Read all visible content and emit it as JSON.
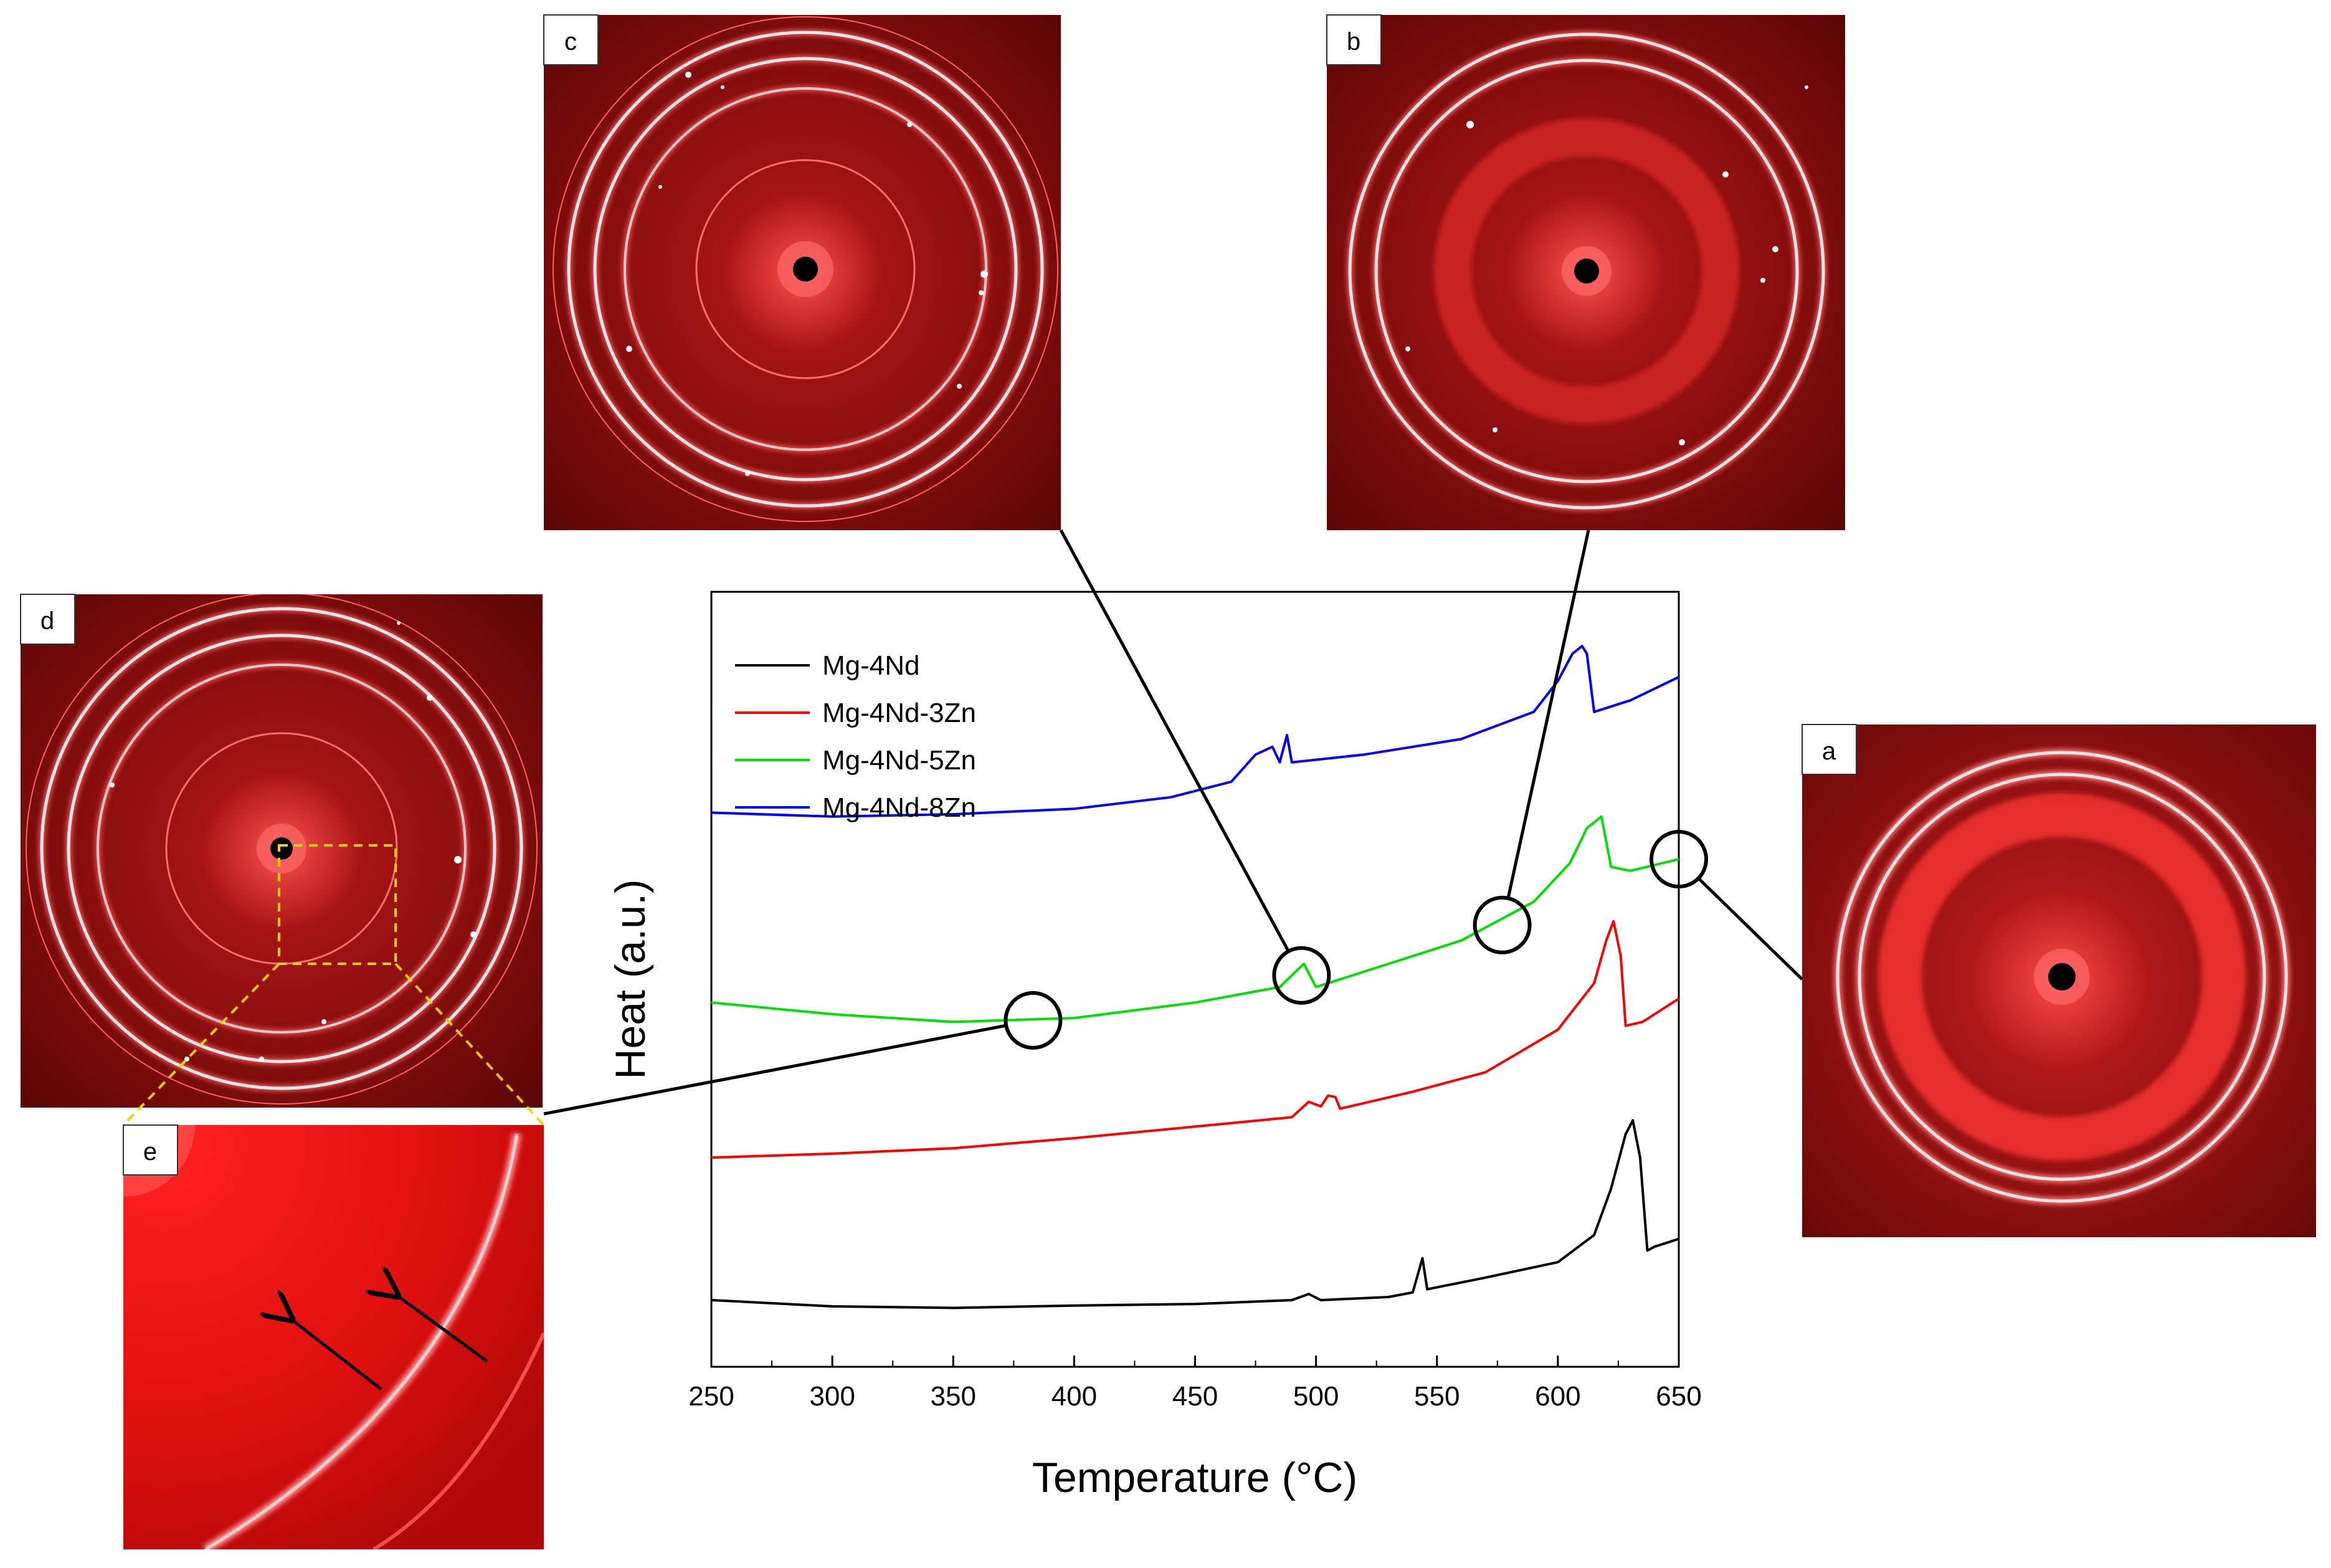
{
  "colors": {
    "series_black": "#000000",
    "series_red": "#ff0000",
    "series_green": "#00e000",
    "series_blue": "#0000ff",
    "pattern_bg": "#7a0a0a",
    "pattern_ring": "#ff5050",
    "inset_box": "#ffd000"
  },
  "panels": {
    "a": {
      "label": "a"
    },
    "b": {
      "label": "b"
    },
    "c": {
      "label": "c"
    },
    "d": {
      "label": "d"
    },
    "e": {
      "label": "e"
    }
  },
  "chart_data": {
    "type": "line",
    "xlabel": "Temperature (°C)",
    "ylabel": "Heat (a.u.)",
    "xlim": [
      250,
      650
    ],
    "ylim": [
      0,
      100
    ],
    "y_ticks_labeled": false,
    "x_ticks": [
      250,
      300,
      350,
      400,
      450,
      500,
      550,
      600,
      650
    ],
    "legend_position": "top-left",
    "series": [
      {
        "name": "Mg-4Nd",
        "color": "#000000",
        "points": [
          [
            250,
            8.6
          ],
          [
            300,
            7.8
          ],
          [
            350,
            7.6
          ],
          [
            400,
            7.9
          ],
          [
            450,
            8.1
          ],
          [
            490,
            8.6
          ],
          [
            497,
            9.4
          ],
          [
            502,
            8.6
          ],
          [
            530,
            9.0
          ],
          [
            540,
            9.6
          ],
          [
            544,
            14.0
          ],
          [
            546,
            10.0
          ],
          [
            570,
            11.5
          ],
          [
            600,
            13.5
          ],
          [
            615,
            17.0
          ],
          [
            622,
            23.0
          ],
          [
            628,
            30.0
          ],
          [
            631,
            31.8
          ],
          [
            634,
            27.0
          ],
          [
            637,
            15.0
          ],
          [
            640,
            15.5
          ],
          [
            650,
            16.5
          ]
        ]
      },
      {
        "name": "Mg-4Nd-3Zn",
        "color": "#ff0000",
        "points": [
          [
            250,
            27.0
          ],
          [
            300,
            27.5
          ],
          [
            350,
            28.2
          ],
          [
            400,
            29.5
          ],
          [
            450,
            31.0
          ],
          [
            490,
            32.2
          ],
          [
            497,
            34.2
          ],
          [
            502,
            33.6
          ],
          [
            505,
            35.0
          ],
          [
            508,
            34.8
          ],
          [
            510,
            33.3
          ],
          [
            540,
            35.5
          ],
          [
            570,
            38.0
          ],
          [
            600,
            43.5
          ],
          [
            615,
            49.5
          ],
          [
            620,
            55.0
          ],
          [
            623,
            57.5
          ],
          [
            626,
            53.0
          ],
          [
            628,
            44.0
          ],
          [
            635,
            44.5
          ],
          [
            650,
            47.5
          ]
        ]
      },
      {
        "name": "Mg-4Nd-5Zn",
        "color": "#00e000",
        "points": [
          [
            250,
            47.0
          ],
          [
            300,
            45.5
          ],
          [
            350,
            44.5
          ],
          [
            400,
            45.0
          ],
          [
            450,
            47.0
          ],
          [
            485,
            49.0
          ],
          [
            495,
            52.0
          ],
          [
            500,
            49.0
          ],
          [
            530,
            52.0
          ],
          [
            560,
            55.0
          ],
          [
            590,
            60.0
          ],
          [
            605,
            65.0
          ],
          [
            612,
            69.5
          ],
          [
            618,
            71.0
          ],
          [
            622,
            64.5
          ],
          [
            630,
            64.0
          ],
          [
            650,
            65.5
          ]
        ]
      },
      {
        "name": "Mg-4Nd-8Zn",
        "color": "#0000ff",
        "points": [
          [
            250,
            71.5
          ],
          [
            300,
            71.0
          ],
          [
            350,
            71.3
          ],
          [
            400,
            72.0
          ],
          [
            440,
            73.5
          ],
          [
            465,
            75.5
          ],
          [
            475,
            79.0
          ],
          [
            482,
            80.0
          ],
          [
            485,
            78.0
          ],
          [
            488,
            81.5
          ],
          [
            490,
            78.0
          ],
          [
            520,
            79.0
          ],
          [
            560,
            81.0
          ],
          [
            590,
            84.5
          ],
          [
            600,
            88.5
          ],
          [
            606,
            92.0
          ],
          [
            610,
            93.0
          ],
          [
            612,
            92.0
          ],
          [
            615,
            84.5
          ],
          [
            630,
            86.0
          ],
          [
            650,
            89.0
          ]
        ]
      }
    ],
    "markers": [
      {
        "x": 383,
        "y": 44.7,
        "target_panel": "e"
      },
      {
        "x": 494,
        "y": 50.5,
        "target_panel": "c"
      },
      {
        "x": 577,
        "y": 57.0,
        "target_panel": "b"
      },
      {
        "x": 650,
        "y": 65.5,
        "target_panel": "a"
      }
    ]
  }
}
